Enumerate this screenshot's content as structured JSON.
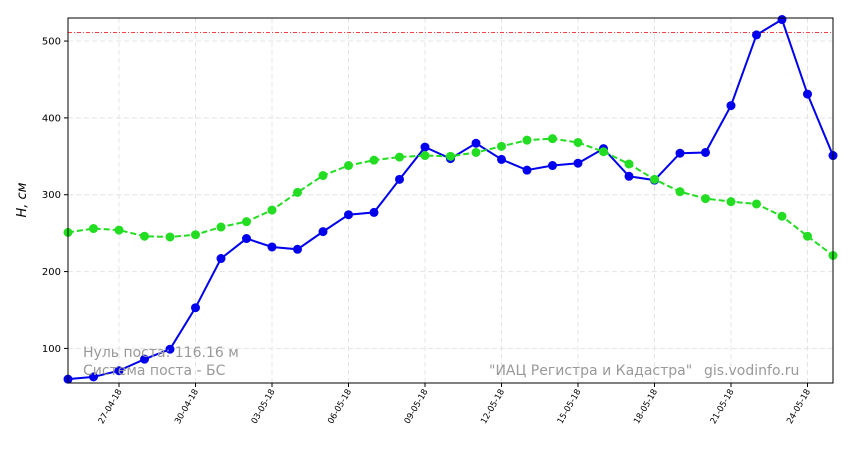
{
  "chart_data": {
    "type": "line",
    "y_label": "H, см",
    "categories": [
      null,
      null,
      "27-04-18",
      null,
      null,
      "30-04-18",
      null,
      null,
      "03-05-18",
      null,
      null,
      "06-05-18",
      null,
      null,
      "09-05-18",
      null,
      null,
      "12-05-18",
      null,
      null,
      "15-05-18",
      null,
      null,
      "18-05-18",
      null,
      null,
      "21-05-18",
      null,
      null,
      "24-05-18",
      null
    ],
    "series": [
      {
        "color": "#0000ee",
        "dashed": false,
        "values": [
          60,
          63,
          71,
          86,
          99,
          153,
          217,
          243,
          232,
          229,
          252,
          274,
          277,
          320,
          362,
          347,
          367,
          346,
          332,
          338,
          341,
          360,
          324,
          319,
          354,
          355,
          416,
          508,
          528,
          431,
          351
        ]
      },
      {
        "color": "#22dd22",
        "dashed": true,
        "values": [
          251,
          256,
          254,
          246,
          245,
          248,
          258,
          265,
          280,
          303,
          325,
          338,
          345,
          349,
          351,
          350,
          355,
          363,
          371,
          373,
          368,
          356,
          340,
          320,
          304,
          295,
          291,
          288,
          272,
          246,
          221
        ]
      }
    ],
    "reference_line": {
      "value": 511,
      "color": "#ff0000"
    },
    "ylim": [
      55,
      530
    ],
    "yticks": [
      100,
      200,
      300,
      400,
      500
    ],
    "grid": true,
    "annotations": {
      "zero_level": "Нуль поста: 116.16 м",
      "system": "Система поста - БС",
      "source": "\"ИАЦ Регистра и Кадастра\"",
      "site": "gis.vodinfo.ru"
    }
  }
}
